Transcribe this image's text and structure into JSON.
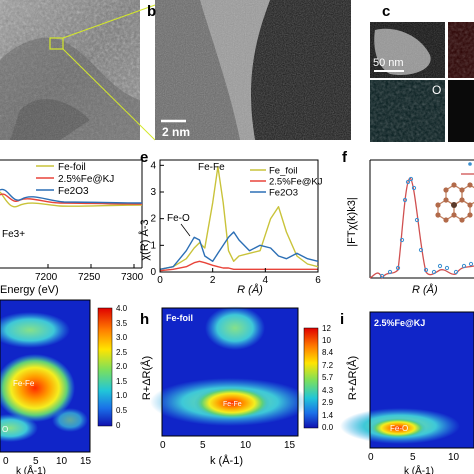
{
  "panels": {
    "a": {
      "letter": ""
    },
    "b": {
      "letter": "b",
      "scale_bar": "2 nm"
    },
    "c": {
      "letter": "c",
      "scale_bar": "50 nm",
      "element_label": "O"
    },
    "d": {
      "letter": "",
      "x_label": "Energy (eV)",
      "x_ticks": [
        "7200",
        "7250",
        "7300"
      ],
      "legend": [
        "Fe-foil",
        "2.5%Fe@KJ",
        "Fe2O3"
      ],
      "annotation": "Fe3+"
    },
    "e": {
      "letter": "e",
      "x_label": "R (Å)",
      "y_label": "χ(R) Å-3",
      "legend": [
        "Fe_foil",
        "2.5%Fe@KJ",
        "Fe2O3"
      ],
      "annotations": [
        "Fe-Fe",
        "Fe-O"
      ]
    },
    "f": {
      "letter": "f",
      "y_label": "|FTχ(k)k3|",
      "x_label": "R (Å)"
    },
    "g": {
      "letter": "",
      "peak_label": "Fe-Fe",
      "low_label": "O",
      "x_label": "k (Å-1)",
      "colorbar_ticks": [
        "4.0",
        "3.5",
        "3.0",
        "2.5",
        "2.0",
        "1.5",
        "1.0",
        "0.5",
        "0"
      ]
    },
    "h": {
      "letter": "h",
      "title": "Fe-foil",
      "peak_label": "Fe-Fe",
      "y_label": "R+ΔR(Å)",
      "x_label": "k (Å-1)",
      "colorbar_ticks": [
        "12",
        "10",
        "8.4",
        "7.2",
        "5.7",
        "4.3",
        "2.9",
        "1.4",
        "0.0"
      ]
    },
    "i": {
      "letter": "i",
      "title": "2.5%Fe@KJ",
      "peak_label": "Fe-O",
      "y_label": "R+ΔR(Å)",
      "x_label": "k (Å-1)"
    }
  },
  "colors": {
    "fe_foil": "#c9c33a",
    "fe_kj": "#e8443a",
    "fe2o3": "#2c6fb5",
    "fit": "#d05050",
    "data": "#3a8fd0"
  },
  "chart_data": [
    {
      "type": "line",
      "title": "",
      "xlabel": "R (Å)",
      "ylabel": "χ(R) Å-3",
      "xlim": [
        0,
        6
      ],
      "ylim": [
        0,
        4.2
      ],
      "x": [
        0,
        0.5,
        1.0,
        1.3,
        1.5,
        1.7,
        2.0,
        2.2,
        2.4,
        2.6,
        2.8,
        3.0,
        3.4,
        3.8,
        4.2,
        4.5,
        4.8,
        5.2,
        5.6,
        6.0
      ],
      "series": [
        {
          "name": "Fe_foil",
          "values": [
            0.1,
            0.2,
            0.5,
            0.9,
            1.1,
            0.9,
            2.6,
            3.95,
            2.6,
            0.8,
            0.4,
            0.6,
            0.7,
            0.8,
            2.0,
            2.45,
            1.5,
            0.6,
            0.3,
            0.2
          ]
        },
        {
          "name": "2.5%Fe@KJ",
          "values": [
            0.05,
            0.1,
            0.2,
            0.35,
            0.4,
            0.35,
            0.25,
            0.2,
            0.15,
            0.15,
            0.1,
            0.1,
            0.1,
            0.1,
            0.1,
            0.1,
            0.1,
            0.1,
            0.1,
            0.1
          ]
        },
        {
          "name": "Fe2O3",
          "values": [
            0.1,
            0.2,
            0.8,
            1.3,
            1.2,
            0.6,
            0.4,
            0.7,
            1.0,
            1.3,
            1.5,
            1.2,
            0.8,
            1.0,
            0.9,
            0.6,
            0.5,
            0.7,
            0.5,
            0.4
          ]
        }
      ]
    }
  ]
}
